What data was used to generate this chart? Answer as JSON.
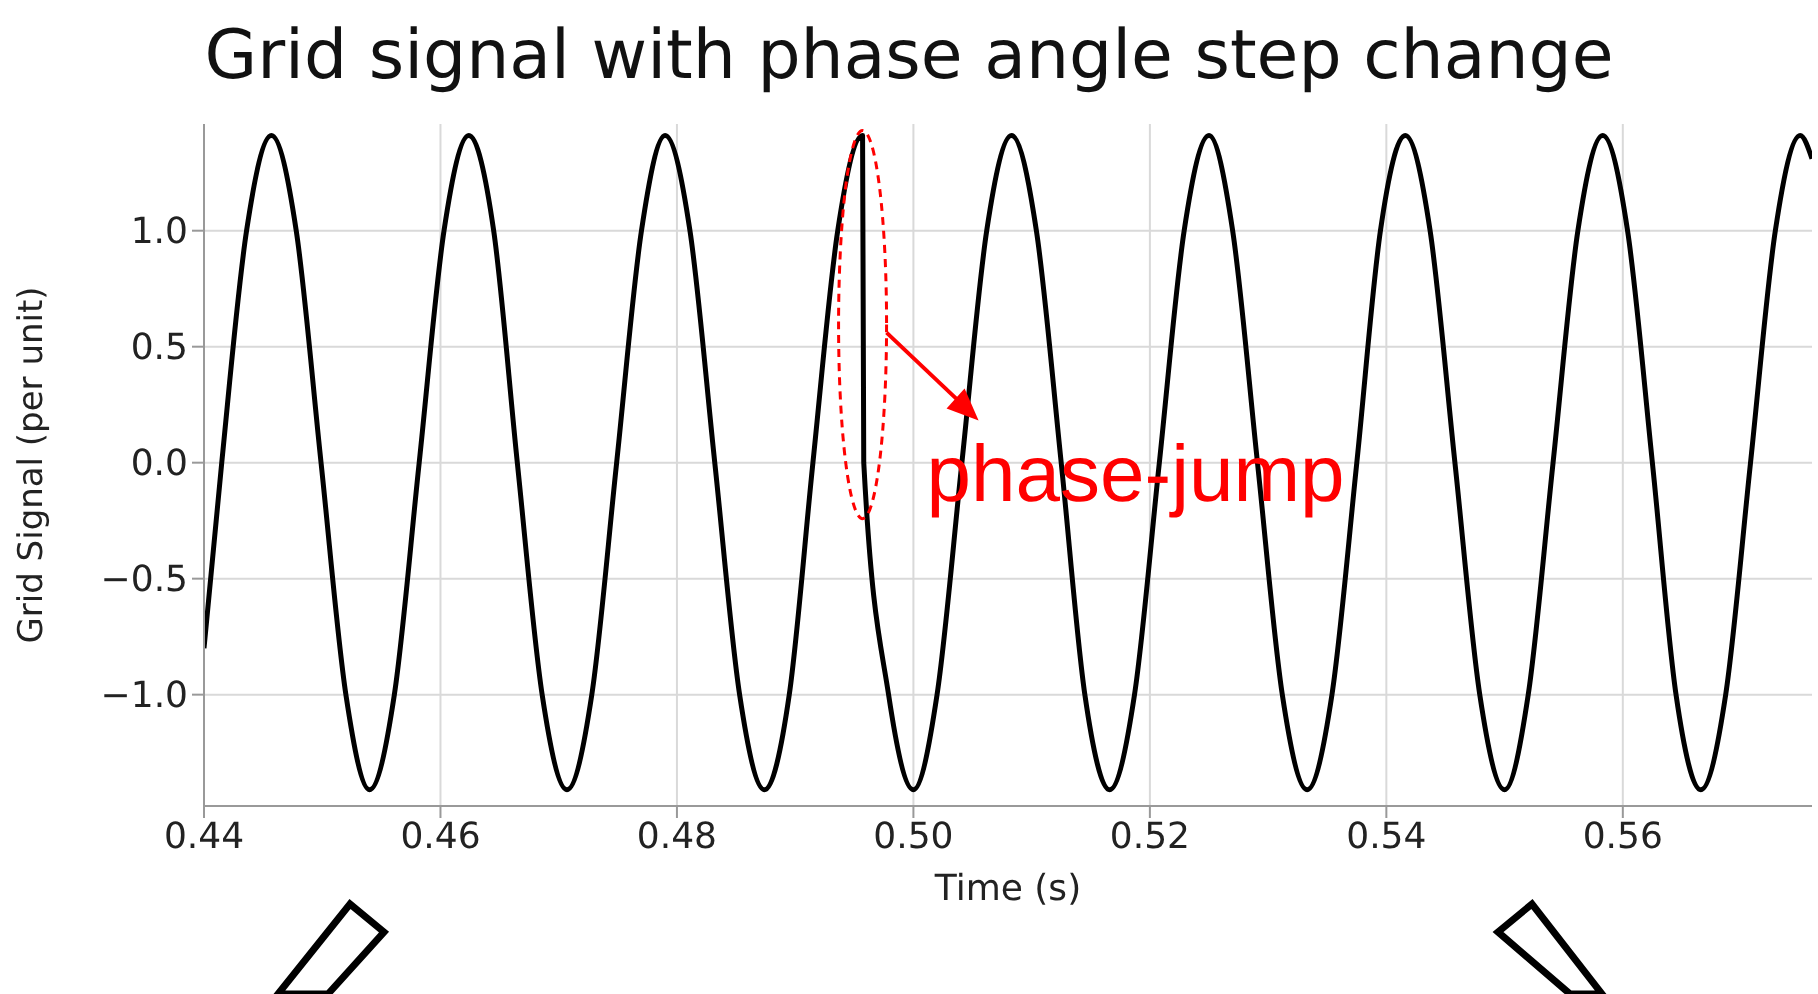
{
  "chart_data": {
    "type": "line",
    "title": "Grid signal with phase angle step change",
    "xlabel": "Time (s)",
    "ylabel": "Grid Signal (per unit)",
    "x": [
      0.44,
      0.4415,
      0.4436,
      0.4457,
      0.4478,
      0.4499,
      0.452,
      0.454,
      0.4561,
      0.4582,
      0.4603,
      0.4624,
      0.4645,
      0.4665,
      0.4686,
      0.4707,
      0.4728,
      0.4749,
      0.477,
      0.479,
      0.4811,
      0.4832,
      0.4853,
      0.4874,
      0.4895,
      0.4915,
      0.4936,
      0.4957,
      0.4958,
      0.4979,
      0.5,
      0.502,
      0.5041,
      0.5062,
      0.5083,
      0.5104,
      0.5125,
      0.5145,
      0.5166,
      0.5187,
      0.5208,
      0.5229,
      0.525,
      0.527,
      0.5291,
      0.5312,
      0.5333,
      0.5354,
      0.5375,
      0.5395,
      0.5416,
      0.5437,
      0.5458,
      0.5479,
      0.55,
      0.552,
      0.5541,
      0.5562,
      0.5583,
      0.5604,
      0.5625,
      0.5645,
      0.5666,
      0.5687,
      0.5708,
      0.5729,
      0.575,
      0.576
    ],
    "series": [
      {
        "color": "#000000",
        "values": [
          -0.8,
          0,
          1,
          1.41,
          1,
          0,
          -1,
          -1.41,
          -1,
          0,
          1,
          1.41,
          1,
          0,
          -1,
          -1.41,
          -1,
          0,
          1,
          1.41,
          1,
          0,
          -1,
          -1.41,
          -1,
          0,
          1,
          1.41,
          0,
          -1,
          -1.41,
          -1,
          0,
          1,
          1.41,
          1,
          0,
          -1,
          -1.41,
          -1,
          0,
          1,
          1.41,
          1,
          0,
          -1,
          -1.41,
          -1,
          0,
          1,
          1.41,
          1,
          0,
          -1,
          -1.41,
          -1,
          0,
          1,
          1.41,
          1,
          0,
          -1,
          -1.41,
          -1,
          0,
          1,
          1.41,
          1.31
        ]
      }
    ],
    "xlim": [
      0.44,
      0.576
    ],
    "xticks": [
      0.44,
      0.46,
      0.48,
      {
        "value": 0.5,
        "label": "0.50"
      },
      0.52,
      0.54,
      0.56
    ],
    "ylim": [
      -1.48,
      1.46
    ],
    "yticks": [
      {
        "value": -1,
        "label": "−1.0"
      },
      {
        "value": -0.5,
        "label": "−0.5"
      },
      {
        "value": 0,
        "label": "0.0"
      },
      {
        "value": 0.5,
        "label": "0.5"
      },
      {
        "value": 1,
        "label": "1.0"
      }
    ],
    "grid": true,
    "marker": "none",
    "line_style": "solid",
    "annotations": [
      {
        "text": "phase-jump",
        "x": 0.4957,
        "y": 0.7
      }
    ]
  }
}
